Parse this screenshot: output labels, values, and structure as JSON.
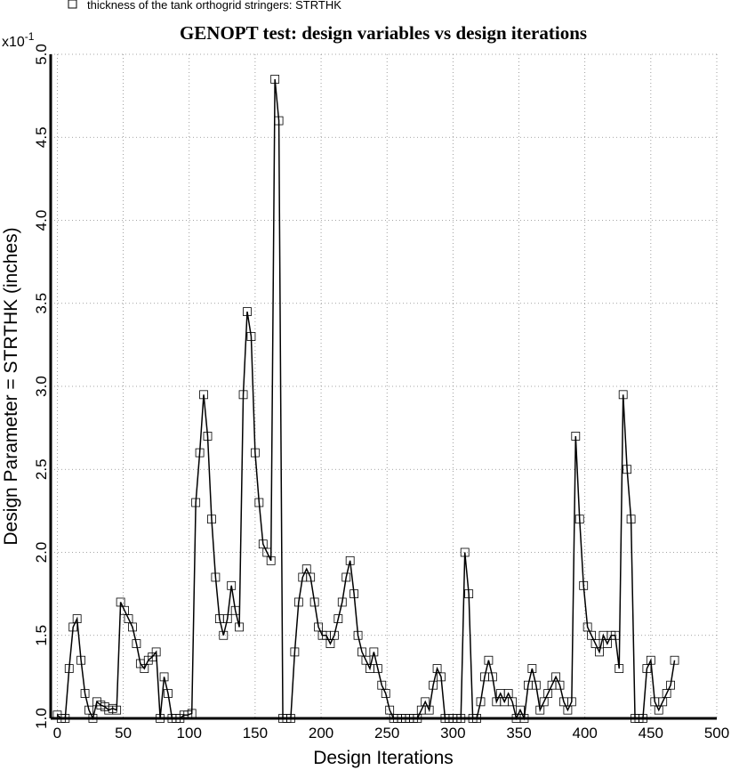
{
  "chart_data": {
    "type": "line",
    "title": "GENOPT test: design variables vs design iterations",
    "xlabel": "Design Iterations",
    "ylabel": "Design Parameter = STRTHK (inches)",
    "y_multiplier": "x10",
    "y_multiplier_exp": "-1",
    "xlim": [
      -5,
      500
    ],
    "ylim": [
      1,
      5
    ],
    "xticks": [
      0,
      50,
      100,
      150,
      200,
      250,
      300,
      350,
      400,
      450,
      500
    ],
    "yticks": [
      {
        "value": 1,
        "label": "1.0"
      },
      1.5,
      2,
      {
        "value": 2,
        "label": "2.0"
      },
      2.5,
      {
        "value": 3,
        "label": "3.0"
      },
      3.5,
      {
        "value": 4,
        "label": "4.0"
      },
      4.5,
      {
        "value": 5,
        "label": "5.0"
      }
    ],
    "grid": true,
    "legend": "top-left",
    "x": [
      0,
      3,
      6,
      9,
      12,
      15,
      18,
      21,
      24,
      27,
      30,
      33,
      36,
      39,
      42,
      45,
      48,
      51,
      54,
      57,
      60,
      63,
      66,
      69,
      72,
      75,
      78,
      81,
      84,
      87,
      90,
      93,
      96,
      99,
      102,
      105,
      108,
      111,
      114,
      117,
      120,
      123,
      126,
      129,
      132,
      135,
      138,
      141,
      144,
      147,
      150,
      153,
      156,
      159,
      162,
      165,
      168,
      171,
      174,
      177,
      180,
      183,
      186,
      189,
      192,
      195,
      198,
      201,
      204,
      207,
      210,
      213,
      216,
      219,
      222,
      225,
      228,
      231,
      234,
      237,
      240,
      243,
      246,
      249,
      252,
      255,
      258,
      261,
      264,
      267,
      270,
      273,
      276,
      279,
      282,
      285,
      288,
      291,
      294,
      297,
      300,
      303,
      306,
      309,
      312,
      315,
      318,
      321,
      324,
      327,
      330,
      333,
      336,
      339,
      342,
      345,
      348,
      351,
      354,
      357,
      360,
      363,
      366,
      369,
      372,
      375,
      378,
      381,
      384,
      387,
      390,
      393,
      396,
      399,
      402,
      405,
      408,
      411,
      414,
      417,
      420,
      423,
      426,
      429,
      432,
      435,
      438,
      441,
      444,
      447,
      450,
      453,
      456,
      459,
      462,
      465,
      468
    ],
    "series": [
      {
        "name": "thickness of the tank orthogrid stringers: STRTHK",
        "color": "#000000",
        "values": [
          1.02,
          1.0,
          1.0,
          1.3,
          1.55,
          1.6,
          1.35,
          1.15,
          1.05,
          1.0,
          1.1,
          1.08,
          1.07,
          1.05,
          1.06,
          1.05,
          1.7,
          1.65,
          1.6,
          1.55,
          1.45,
          1.33,
          1.3,
          1.35,
          1.37,
          1.4,
          1.0,
          1.25,
          1.15,
          1.0,
          1.0,
          1.0,
          1.02,
          1.02,
          1.03,
          2.3,
          2.6,
          2.95,
          2.7,
          2.2,
          1.85,
          1.6,
          1.5,
          1.6,
          1.8,
          1.65,
          1.55,
          2.95,
          3.45,
          3.3,
          2.6,
          2.3,
          2.05,
          2.0,
          1.95,
          4.85,
          4.6,
          1.0,
          1.0,
          1.0,
          1.4,
          1.7,
          1.85,
          1.9,
          1.85,
          1.7,
          1.55,
          1.5,
          1.5,
          1.45,
          1.5,
          1.6,
          1.7,
          1.85,
          1.95,
          1.75,
          1.5,
          1.4,
          1.35,
          1.3,
          1.4,
          1.3,
          1.2,
          1.15,
          1.05,
          1.0,
          1.0,
          1.0,
          1.0,
          1.0,
          1.0,
          1.0,
          1.05,
          1.1,
          1.05,
          1.2,
          1.3,
          1.25,
          1.0,
          1.0,
          1.0,
          1.0,
          1.0,
          2.0,
          1.75,
          1.0,
          1.0,
          1.1,
          1.25,
          1.35,
          1.25,
          1.1,
          1.15,
          1.1,
          1.15,
          1.1,
          1.0,
          1.05,
          1.0,
          1.2,
          1.3,
          1.2,
          1.05,
          1.1,
          1.15,
          1.2,
          1.25,
          1.2,
          1.1,
          1.05,
          1.1,
          2.7,
          2.2,
          1.8,
          1.55,
          1.5,
          1.45,
          1.4,
          1.5,
          1.45,
          1.5,
          1.5,
          1.3,
          2.95,
          2.5,
          2.2,
          1.0,
          1.0,
          1.0,
          1.3,
          1.35,
          1.1,
          1.05,
          1.1,
          1.15,
          1.2,
          1.35
        ]
      }
    ]
  }
}
